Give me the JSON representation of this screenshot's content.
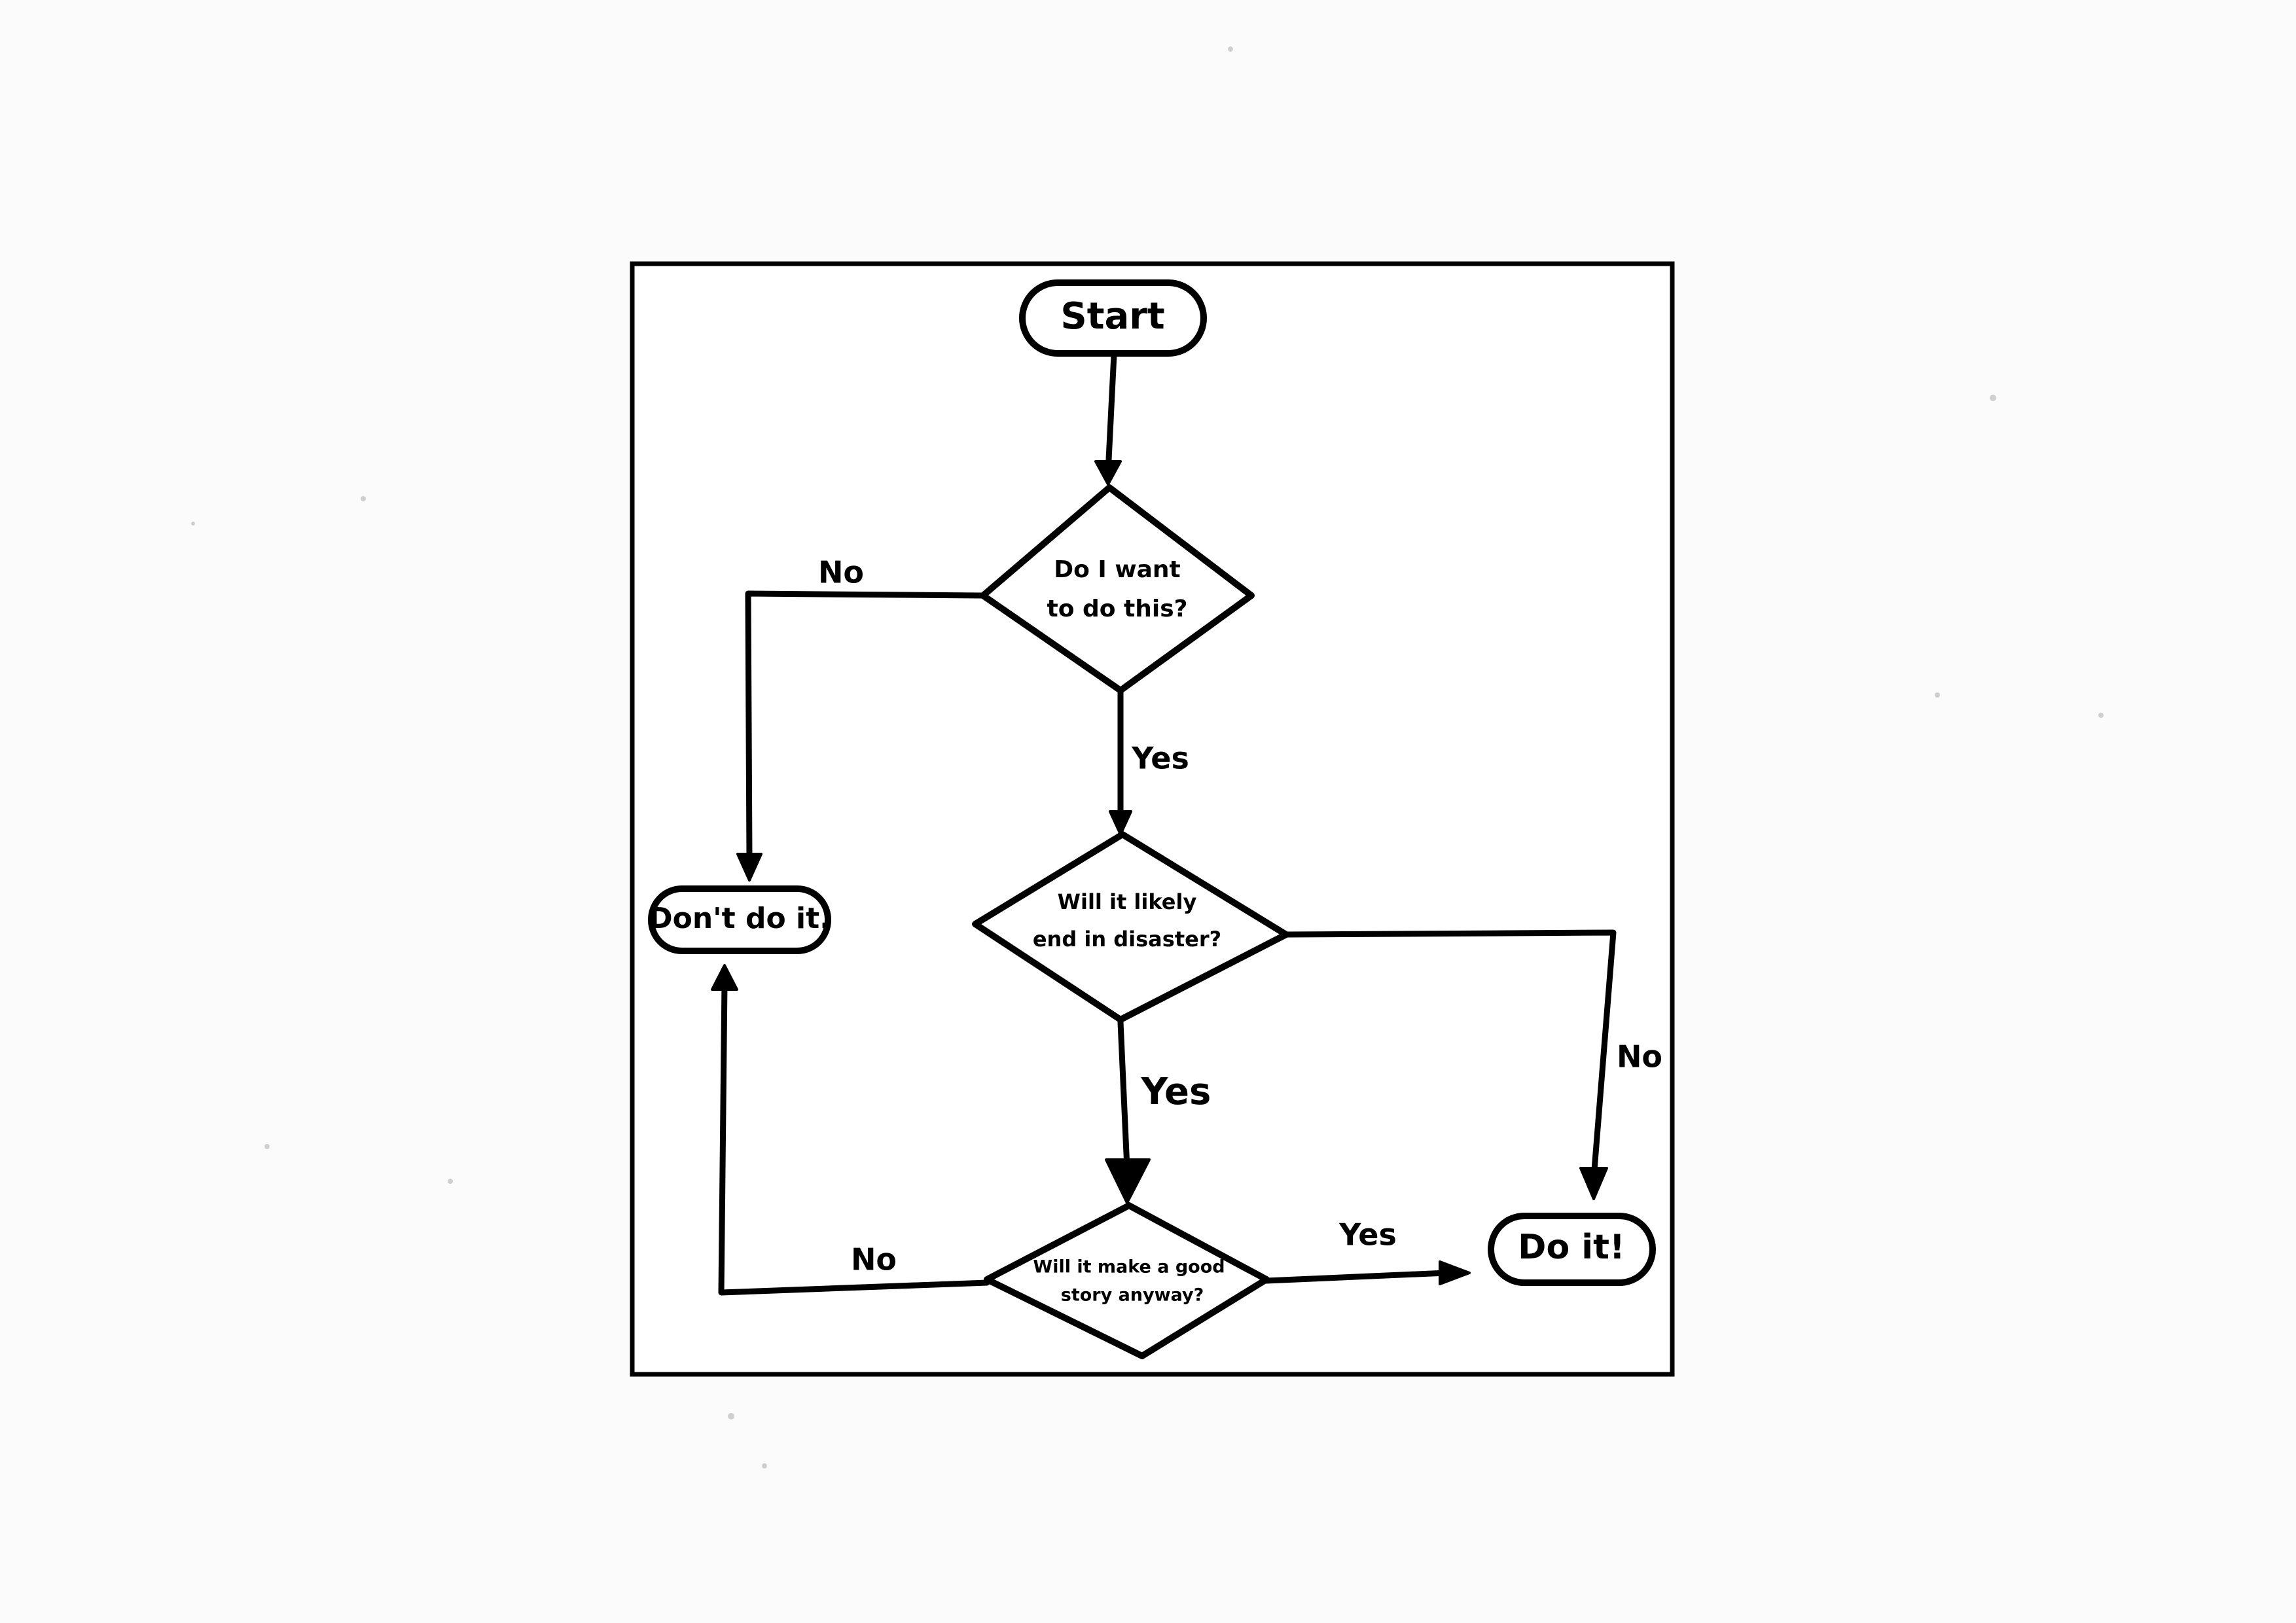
{
  "diagram": {
    "nodes": {
      "start": "Start",
      "q1": [
        "Do I want",
        "to do this?"
      ],
      "q2": [
        "Will it likely",
        "end in disaster?"
      ],
      "q3": [
        "Will it make a good",
        "story anyway?"
      ],
      "dont": "Don't do it.",
      "do": "Do it!"
    },
    "edges": {
      "q1_no": "No",
      "q1_yes": "Yes",
      "q2_yes": "Yes",
      "q2_no": "No",
      "q3_no": "No",
      "q3_yes": "Yes"
    }
  }
}
